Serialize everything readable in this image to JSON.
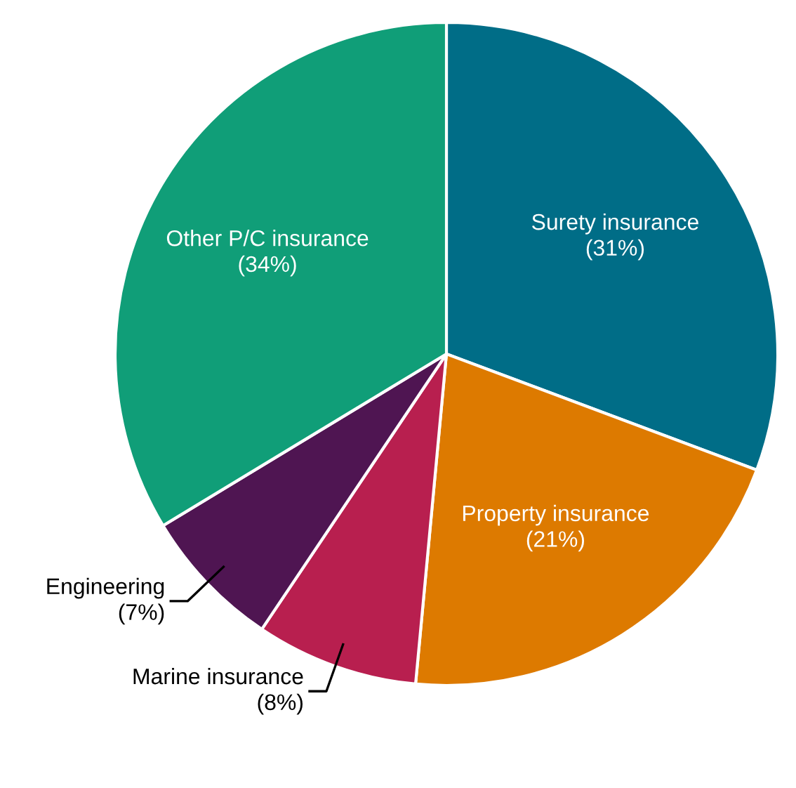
{
  "chart_data": {
    "type": "pie",
    "categories": [
      "Surety insurance",
      "Property insurance",
      "Marine insurance",
      "Engineering",
      "Other P/C insurance"
    ],
    "values": [
      31,
      21,
      8,
      7,
      34
    ],
    "value_labels": [
      "(31%)",
      "(21%)",
      "(8%)",
      "(7%)",
      "(34%)"
    ],
    "colors": [
      "#006d87",
      "#dd7a00",
      "#b81f4f",
      "#4f1552",
      "#109e78"
    ],
    "legend": false
  }
}
